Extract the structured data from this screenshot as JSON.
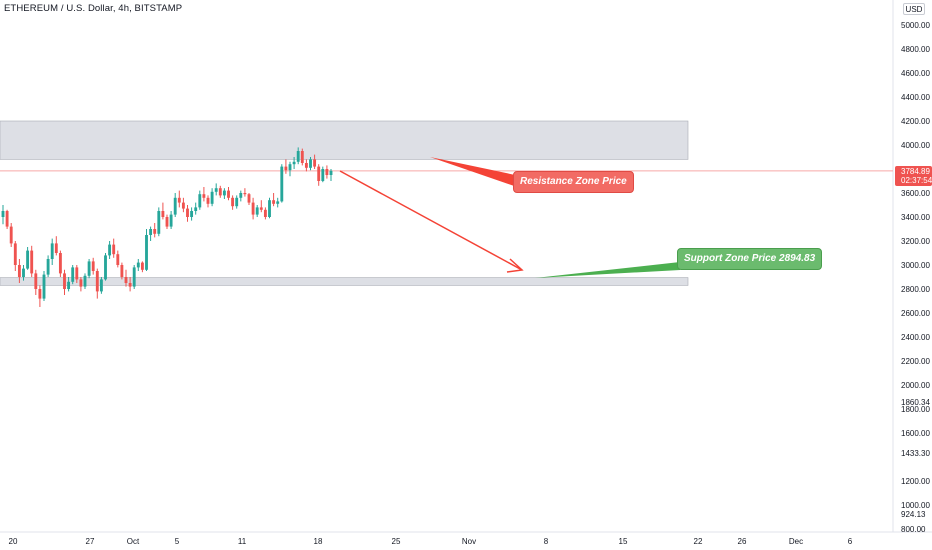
{
  "header": {
    "symbol_line": "ETHEREUM / U.S. Dollar, 4h, BITSTAMP",
    "currency": "USD"
  },
  "colors": {
    "up": "#26a69a",
    "down": "#ef5350",
    "zone": "#d1d4dc",
    "resistance": "#f44336",
    "support": "#4caf50",
    "last_price_line": "#f7a9a7"
  },
  "price_badge": {
    "price": "3784.89",
    "countdown": "02:37:54",
    "value": 3784.89
  },
  "annotations": {
    "resistance_label": "Resistance Zone Price",
    "support_label": "Support Zone Price 2894.83"
  },
  "chart_data": {
    "type": "candlestick",
    "x_ticks": [
      "20",
      "27",
      "Oct",
      "5",
      "11",
      "18",
      "25",
      "Nov",
      "8",
      "15",
      "22",
      "26",
      "Dec",
      "6"
    ],
    "y_ticks": [
      "5000.00",
      "4800.00",
      "4600.00",
      "4400.00",
      "4200.00",
      "4000.00",
      "3600.00",
      "3400.00",
      "3200.00",
      "3000.00",
      "2800.00",
      "2600.00",
      "2400.00",
      "2200.00",
      "2000.00",
      "1860.34",
      "1800.00",
      "1600.00",
      "1433.30",
      "1200.00",
      "1000.00",
      "924.13",
      "800.00"
    ],
    "y_range": [
      800,
      5000
    ],
    "resistance_zone": [
      3880,
      4200
    ],
    "support_zone": [
      2830,
      2895
    ],
    "support_price": 2894.83,
    "last_price": 3784.89,
    "candles": [
      [
        3400,
        3500,
        3340,
        3450
      ],
      [
        3450,
        3460,
        3300,
        3320
      ],
      [
        3320,
        3350,
        3150,
        3180
      ],
      [
        3180,
        3200,
        2950,
        3000
      ],
      [
        3000,
        3050,
        2850,
        2900
      ],
      [
        2900,
        3000,
        2870,
        2970
      ],
      [
        2970,
        3150,
        2960,
        3120
      ],
      [
        3120,
        3160,
        2900,
        2930
      ],
      [
        2930,
        2960,
        2750,
        2800
      ],
      [
        2800,
        2830,
        2650,
        2720
      ],
      [
        2720,
        2950,
        2700,
        2920
      ],
      [
        2920,
        3080,
        2900,
        3050
      ],
      [
        3050,
        3220,
        3000,
        3180
      ],
      [
        3180,
        3240,
        3080,
        3100
      ],
      [
        3100,
        3120,
        2900,
        2930
      ],
      [
        2930,
        2960,
        2750,
        2800
      ],
      [
        2800,
        2900,
        2780,
        2860
      ],
      [
        2860,
        3000,
        2840,
        2980
      ],
      [
        2980,
        3000,
        2850,
        2880
      ],
      [
        2880,
        2900,
        2780,
        2820
      ],
      [
        2820,
        2930,
        2800,
        2910
      ],
      [
        2910,
        3050,
        2890,
        3030
      ],
      [
        3030,
        3060,
        2920,
        2950
      ],
      [
        2950,
        2970,
        2720,
        2780
      ],
      [
        2780,
        2900,
        2760,
        2880
      ],
      [
        2880,
        3100,
        2870,
        3080
      ],
      [
        3080,
        3200,
        3050,
        3170
      ],
      [
        3170,
        3220,
        3060,
        3090
      ],
      [
        3090,
        3120,
        2980,
        3000
      ],
      [
        3000,
        3020,
        2880,
        2900
      ],
      [
        2900,
        2960,
        2820,
        2850
      ],
      [
        2850,
        2900,
        2780,
        2820
      ],
      [
        2820,
        3000,
        2800,
        2980
      ],
      [
        2980,
        3050,
        2950,
        3020
      ],
      [
        3020,
        3030,
        2940,
        2960
      ],
      [
        2960,
        3300,
        2950,
        3250
      ],
      [
        3250,
        3320,
        3200,
        3300
      ],
      [
        3300,
        3350,
        3230,
        3260
      ],
      [
        3260,
        3480,
        3240,
        3450
      ],
      [
        3450,
        3520,
        3380,
        3400
      ],
      [
        3400,
        3420,
        3300,
        3320
      ],
      [
        3320,
        3450,
        3300,
        3420
      ],
      [
        3420,
        3600,
        3400,
        3560
      ],
      [
        3560,
        3620,
        3480,
        3520
      ],
      [
        3520,
        3560,
        3440,
        3470
      ],
      [
        3470,
        3500,
        3360,
        3400
      ],
      [
        3400,
        3480,
        3370,
        3450
      ],
      [
        3450,
        3520,
        3420,
        3480
      ],
      [
        3480,
        3620,
        3460,
        3590
      ],
      [
        3590,
        3650,
        3530,
        3560
      ],
      [
        3560,
        3580,
        3480,
        3510
      ],
      [
        3510,
        3640,
        3490,
        3610
      ],
      [
        3610,
        3680,
        3580,
        3640
      ],
      [
        3640,
        3660,
        3560,
        3580
      ],
      [
        3580,
        3640,
        3550,
        3620
      ],
      [
        3620,
        3650,
        3540,
        3560
      ],
      [
        3560,
        3580,
        3460,
        3490
      ],
      [
        3490,
        3580,
        3470,
        3560
      ],
      [
        3560,
        3620,
        3530,
        3600
      ],
      [
        3600,
        3640,
        3570,
        3590
      ],
      [
        3590,
        3600,
        3500,
        3520
      ],
      [
        3520,
        3560,
        3380,
        3420
      ],
      [
        3420,
        3500,
        3400,
        3480
      ],
      [
        3480,
        3540,
        3440,
        3460
      ],
      [
        3460,
        3480,
        3380,
        3400
      ],
      [
        3400,
        3560,
        3390,
        3540
      ],
      [
        3540,
        3600,
        3490,
        3510
      ],
      [
        3510,
        3560,
        3480,
        3530
      ],
      [
        3530,
        3840,
        3520,
        3820
      ],
      [
        3820,
        3880,
        3760,
        3790
      ],
      [
        3790,
        3860,
        3740,
        3840
      ],
      [
        3840,
        3900,
        3800,
        3860
      ],
      [
        3860,
        3980,
        3840,
        3950
      ],
      [
        3950,
        3970,
        3830,
        3850
      ],
      [
        3850,
        3880,
        3780,
        3810
      ],
      [
        3810,
        3900,
        3790,
        3880
      ],
      [
        3880,
        3920,
        3800,
        3820
      ],
      [
        3820,
        3840,
        3660,
        3700
      ],
      [
        3700,
        3820,
        3690,
        3800
      ],
      [
        3800,
        3830,
        3720,
        3750
      ],
      [
        3750,
        3800,
        3700,
        3785
      ]
    ]
  }
}
